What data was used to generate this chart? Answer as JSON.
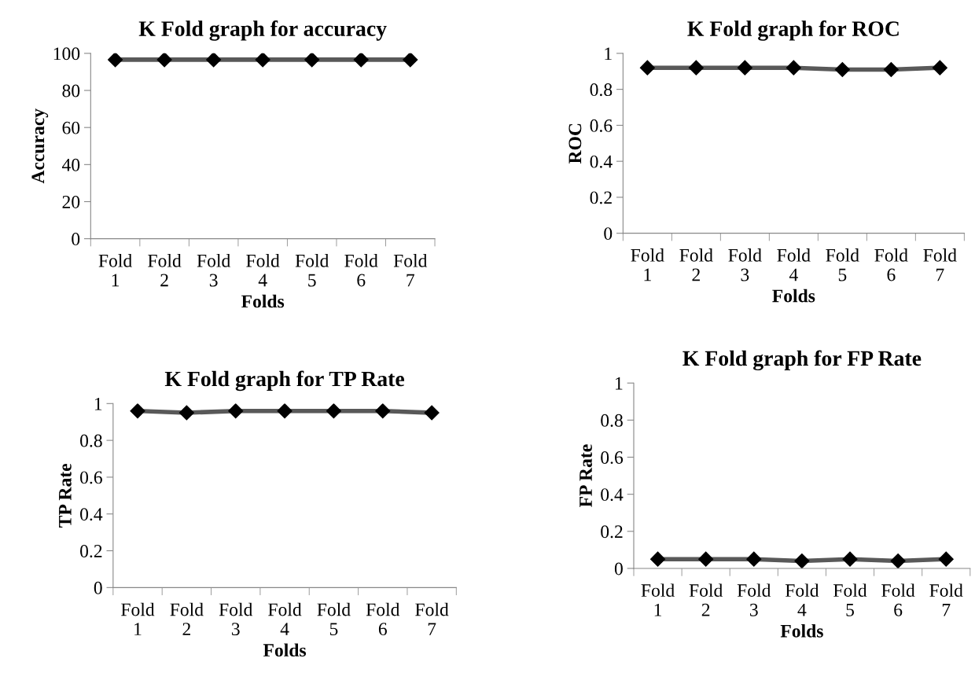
{
  "chart_data": [
    {
      "type": "line",
      "title": "K Fold graph for accuracy",
      "xlabel": "Folds",
      "ylabel": "Accuracy",
      "categories": [
        "Fold\n1",
        "Fold\n2",
        "Fold\n3",
        "Fold\n4",
        "Fold\n5",
        "Fold\n6",
        "Fold\n7"
      ],
      "series": [
        {
          "color": "#595959",
          "values": [
            96.6,
            96.6,
            96.6,
            96.6,
            96.6,
            96.6,
            96.6
          ]
        }
      ],
      "ylim": [
        0,
        100
      ],
      "yticks": [
        0,
        20,
        40,
        60,
        80,
        100
      ],
      "marker": "diamond",
      "grid": false
    },
    {
      "type": "line",
      "title": "K Fold graph for ROC",
      "xlabel": "Folds",
      "ylabel": "ROC",
      "categories": [
        "Fold\n1",
        "Fold\n2",
        "Fold\n3",
        "Fold\n4",
        "Fold\n5",
        "Fold\n6",
        "Fold\n7"
      ],
      "series": [
        {
          "color": "#595959",
          "values": [
            0.92,
            0.92,
            0.92,
            0.92,
            0.91,
            0.91,
            0.92
          ]
        }
      ],
      "ylim": [
        0,
        1
      ],
      "yticks": [
        0,
        0.2,
        0.4,
        0.6,
        0.8,
        1
      ],
      "marker": "diamond",
      "grid": false
    },
    {
      "type": "line",
      "title": "K Fold graph for TP Rate",
      "xlabel": "Folds",
      "ylabel": "TP Rate",
      "categories": [
        "Fold\n1",
        "Fold\n2",
        "Fold\n3",
        "Fold\n4",
        "Fold\n5",
        "Fold\n6",
        "Fold\n7"
      ],
      "series": [
        {
          "color": "#595959",
          "values": [
            0.96,
            0.95,
            0.96,
            0.96,
            0.96,
            0.96,
            0.95
          ]
        }
      ],
      "ylim": [
        0,
        1
      ],
      "yticks": [
        0,
        0.2,
        0.4,
        0.6,
        0.8,
        1
      ],
      "marker": "diamond",
      "grid": false
    },
    {
      "type": "line",
      "title": "K Fold graph for FP Rate",
      "xlabel": "Folds",
      "ylabel": "FP Rate",
      "categories": [
        "Fold\n1",
        "Fold\n2",
        "Fold\n3",
        "Fold\n4",
        "Fold\n5",
        "Fold\n6",
        "Fold\n7"
      ],
      "series": [
        {
          "color": "#595959",
          "values": [
            0.05,
            0.05,
            0.05,
            0.04,
            0.05,
            0.04,
            0.05
          ]
        }
      ],
      "ylim": [
        0,
        1
      ],
      "yticks": [
        0,
        0.2,
        0.4,
        0.6,
        0.8,
        1
      ],
      "marker": "diamond",
      "grid": false
    }
  ]
}
